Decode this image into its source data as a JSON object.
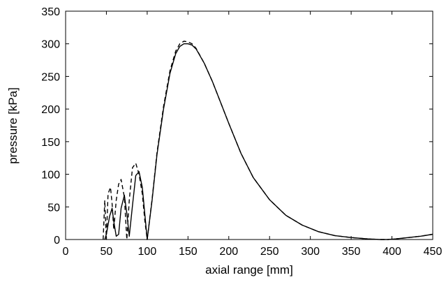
{
  "chart_data": {
    "type": "line",
    "title": "",
    "xlabel": "axial range [mm]",
    "ylabel": "pressure [kPa]",
    "xlim": [
      0,
      450
    ],
    "ylim": [
      0,
      350
    ],
    "xticks": [
      0,
      50,
      100,
      150,
      200,
      250,
      300,
      350,
      400,
      450
    ],
    "yticks": [
      0,
      50,
      100,
      150,
      200,
      250,
      300,
      350
    ],
    "grid": false,
    "legend": "none",
    "series": [
      {
        "style": "solid",
        "color": "#000000",
        "x": [
          48,
          50,
          54,
          57,
          59,
          62,
          65,
          68,
          72,
          75,
          78,
          82,
          86,
          90,
          94,
          97,
          100,
          106,
          112,
          120,
          128,
          135,
          140,
          145,
          150,
          155,
          160,
          170,
          180,
          190,
          200,
          215,
          230,
          250,
          270,
          290,
          310,
          330,
          350,
          370,
          385,
          395,
          405,
          420,
          435,
          450
        ],
        "y": [
          0,
          8,
          36,
          48,
          28,
          5,
          8,
          48,
          68,
          40,
          5,
          52,
          98,
          104,
          80,
          40,
          0,
          60,
          130,
          200,
          255,
          285,
          296,
          300,
          300,
          298,
          292,
          270,
          242,
          210,
          178,
          132,
          95,
          61,
          37,
          22,
          12,
          6,
          3,
          1,
          0,
          0,
          1,
          3,
          5,
          8
        ]
      },
      {
        "style": "dashed",
        "color": "#000000",
        "x": [
          46,
          48,
          50,
          52,
          55,
          57,
          59,
          62,
          65,
          68,
          72,
          75,
          78,
          82,
          86,
          90,
          94,
          97,
          100,
          106,
          112,
          120,
          128,
          135,
          140,
          145,
          150,
          155,
          160,
          170,
          180,
          190,
          200,
          215,
          230,
          250,
          270,
          290,
          310,
          330,
          350,
          370,
          385,
          395,
          405,
          420,
          435,
          450
        ],
        "y": [
          0,
          60,
          0,
          70,
          80,
          55,
          15,
          60,
          85,
          92,
          65,
          0,
          60,
          110,
          117,
          100,
          70,
          30,
          0,
          62,
          133,
          204,
          259,
          289,
          300,
          304,
          303,
          300,
          293,
          270,
          242,
          210,
          178,
          132,
          95,
          61,
          37,
          22,
          12,
          6,
          3,
          1,
          0,
          0,
          1,
          3,
          5,
          8
        ]
      }
    ]
  }
}
